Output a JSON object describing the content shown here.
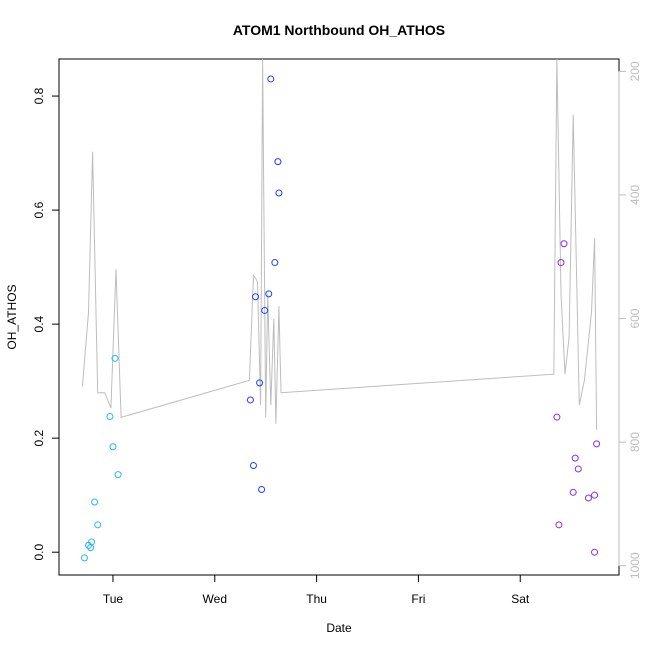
{
  "chart_data": {
    "type": "scatter",
    "title": "ATOM1 Northbound OH_ATHOS",
    "xlabel": "Date",
    "ylabel": "OH_ATHOS",
    "x_ticks": [
      "Tue",
      "Wed",
      "Thu",
      "Fri",
      "Sat"
    ],
    "x_range_days": [
      0.47,
      5.97
    ],
    "ylim": [
      -0.04,
      0.865
    ],
    "y_ticks": [
      "0.0",
      "0.2",
      "0.4",
      "0.6",
      "0.8"
    ],
    "y_tick_values": [
      0.0,
      0.2,
      0.4,
      0.6,
      0.8
    ],
    "secondary_axis": {
      "side": "right",
      "ticks": [
        "200",
        "400",
        "600",
        "800",
        "1000"
      ],
      "tick_values": [
        200,
        400,
        600,
        800,
        1000
      ],
      "range": [
        1015,
        180
      ],
      "reversed": true,
      "color": "#bdbdbd"
    },
    "series": [
      {
        "color": "#29b6f6",
        "points": [
          [
            0.72,
            -0.01
          ],
          [
            0.76,
            0.012
          ],
          [
            0.78,
            0.008
          ],
          [
            0.79,
            0.018
          ],
          [
            0.82,
            0.088
          ],
          [
            0.85,
            0.048
          ],
          [
            0.97,
            0.238
          ],
          [
            1.0,
            0.185
          ],
          [
            1.02,
            0.34
          ],
          [
            1.05,
            0.136
          ]
        ]
      },
      {
        "color": "#1e40ff",
        "points": [
          [
            2.35,
            0.267
          ],
          [
            2.38,
            0.152
          ],
          [
            2.4,
            0.448
          ],
          [
            2.44,
            0.297
          ],
          [
            2.46,
            0.11
          ],
          [
            2.49,
            0.424
          ],
          [
            2.53,
            0.453
          ],
          [
            2.55,
            0.83
          ],
          [
            2.59,
            0.508
          ],
          [
            2.62,
            0.685
          ],
          [
            2.63,
            0.63
          ]
        ]
      },
      {
        "color": "#8a2be2",
        "points": [
          [
            5.36,
            0.237
          ],
          [
            5.38,
            0.048
          ],
          [
            5.4,
            0.508
          ],
          [
            5.43,
            0.541
          ],
          [
            5.52,
            0.105
          ],
          [
            5.54,
            0.165
          ],
          [
            5.57,
            0.146
          ],
          [
            5.67,
            0.095
          ],
          [
            5.73,
            0.1
          ],
          [
            5.73,
            0.0
          ],
          [
            5.75,
            0.19
          ]
        ]
      },
      {
        "color": "#bdbdbd",
        "line": true,
        "points": [
          [
            0.7,
            710
          ],
          [
            0.76,
            590
          ],
          [
            0.8,
            330
          ],
          [
            0.85,
            720
          ],
          [
            0.92,
            720
          ],
          [
            0.98,
            745
          ],
          [
            1.03,
            520
          ],
          [
            1.08,
            760
          ],
          [
            2.34,
            700
          ],
          [
            2.38,
            530
          ],
          [
            2.42,
            540
          ],
          [
            2.45,
            740
          ],
          [
            2.47,
            175
          ],
          [
            2.5,
            760
          ],
          [
            2.52,
            560
          ],
          [
            2.55,
            740
          ],
          [
            2.58,
            600
          ],
          [
            2.6,
            770
          ],
          [
            2.63,
            580
          ],
          [
            2.65,
            720
          ],
          [
            5.33,
            690
          ],
          [
            5.36,
            175
          ],
          [
            5.4,
            560
          ],
          [
            5.44,
            690
          ],
          [
            5.48,
            630
          ],
          [
            5.52,
            270
          ],
          [
            5.58,
            740
          ],
          [
            5.63,
            700
          ],
          [
            5.7,
            590
          ],
          [
            5.73,
            470
          ],
          [
            5.75,
            780
          ]
        ]
      }
    ],
    "grid": false,
    "legend": "none"
  }
}
